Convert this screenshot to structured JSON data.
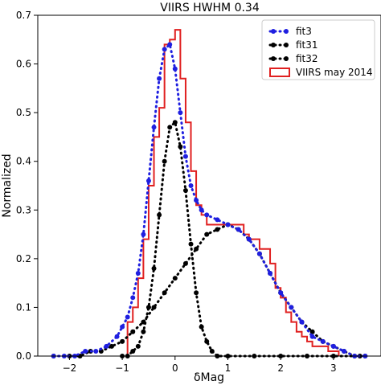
{
  "chart_data": {
    "type": "line",
    "title": "VIIRS HWHM 0.34",
    "xlabel": "δMag",
    "ylabel": "Normalized",
    "xlim": [
      -2.6,
      3.9
    ],
    "ylim": [
      0,
      0.7
    ],
    "xticks": [
      -2,
      -1,
      0,
      1,
      2,
      3
    ],
    "yticks": [
      0.0,
      0.1,
      0.2,
      0.3,
      0.4,
      0.5,
      0.6,
      0.7
    ],
    "grid": false,
    "legend_position": "top-right",
    "series": [
      {
        "name": "fit3",
        "style": "dotted-markers",
        "color": "#1f1fe0",
        "x": [
          -2.3,
          -2.1,
          -1.9,
          -1.7,
          -1.5,
          -1.3,
          -1.1,
          -1.0,
          -0.9,
          -0.8,
          -0.7,
          -0.6,
          -0.5,
          -0.4,
          -0.3,
          -0.2,
          -0.1,
          0.0,
          0.1,
          0.2,
          0.3,
          0.4,
          0.5,
          0.6,
          0.8,
          1.0,
          1.2,
          1.4,
          1.6,
          1.8,
          2.0,
          2.2,
          2.4,
          2.6,
          2.8,
          3.0,
          3.2,
          3.4,
          3.6
        ],
        "y": [
          0.0,
          0.0,
          0.0,
          0.01,
          0.01,
          0.02,
          0.04,
          0.06,
          0.08,
          0.12,
          0.17,
          0.25,
          0.36,
          0.47,
          0.57,
          0.63,
          0.64,
          0.59,
          0.5,
          0.41,
          0.35,
          0.32,
          0.3,
          0.29,
          0.28,
          0.27,
          0.26,
          0.24,
          0.21,
          0.17,
          0.13,
          0.1,
          0.07,
          0.04,
          0.03,
          0.02,
          0.01,
          0.0,
          0.0
        ]
      },
      {
        "name": "fit31",
        "style": "dotted-markers",
        "color": "#000000",
        "x": [
          -1.0,
          -0.9,
          -0.8,
          -0.7,
          -0.6,
          -0.5,
          -0.4,
          -0.3,
          -0.2,
          -0.1,
          0.0,
          0.1,
          0.2,
          0.3,
          0.4,
          0.5,
          0.6,
          0.7,
          0.8,
          1.0,
          1.5,
          2.0,
          2.5,
          3.0,
          3.5
        ],
        "y": [
          0.0,
          0.0,
          0.01,
          0.02,
          0.05,
          0.1,
          0.18,
          0.29,
          0.4,
          0.47,
          0.48,
          0.43,
          0.34,
          0.23,
          0.13,
          0.06,
          0.03,
          0.01,
          0.0,
          0.0,
          0.0,
          0.0,
          0.0,
          0.0,
          0.0
        ]
      },
      {
        "name": "fit32",
        "style": "dotted-markers",
        "color": "#000000",
        "x": [
          -2.3,
          -2.0,
          -1.8,
          -1.6,
          -1.4,
          -1.2,
          -1.0,
          -0.8,
          -0.6,
          -0.4,
          -0.2,
          0.0,
          0.2,
          0.4,
          0.6,
          0.8,
          1.0,
          1.2,
          1.4,
          1.6,
          1.8,
          2.0,
          2.2,
          2.4,
          2.6,
          2.8,
          3.0,
          3.2,
          3.4,
          3.6
        ],
        "y": [
          0.0,
          0.0,
          0.0,
          0.01,
          0.01,
          0.02,
          0.03,
          0.05,
          0.07,
          0.1,
          0.13,
          0.16,
          0.19,
          0.22,
          0.25,
          0.26,
          0.27,
          0.26,
          0.24,
          0.21,
          0.17,
          0.13,
          0.1,
          0.07,
          0.05,
          0.03,
          0.02,
          0.01,
          0.0,
          0.0
        ]
      },
      {
        "name": "VIIRS may 2014",
        "style": "step",
        "color": "#e02020",
        "bin_edges": [
          -0.9,
          -0.8,
          -0.7,
          -0.6,
          -0.5,
          -0.4,
          -0.3,
          -0.2,
          -0.1,
          0.0,
          0.1,
          0.2,
          0.3,
          0.4,
          0.5,
          0.6,
          0.7,
          0.8,
          0.9,
          1.0,
          1.1,
          1.2,
          1.3,
          1.4,
          1.5,
          1.6,
          1.7,
          1.8,
          1.9,
          2.0,
          2.1,
          2.2,
          2.3,
          2.4,
          2.5,
          2.6,
          2.7,
          2.8,
          2.9,
          3.0,
          3.1
        ],
        "values": [
          0.07,
          0.1,
          0.16,
          0.24,
          0.35,
          0.45,
          0.51,
          0.64,
          0.65,
          0.67,
          0.57,
          0.48,
          0.38,
          0.31,
          0.29,
          0.27,
          0.27,
          0.27,
          0.27,
          0.27,
          0.27,
          0.27,
          0.25,
          0.24,
          0.24,
          0.22,
          0.22,
          0.19,
          0.14,
          0.12,
          0.09,
          0.07,
          0.05,
          0.04,
          0.03,
          0.02,
          0.02,
          0.02,
          0.01,
          0.01
        ]
      }
    ]
  }
}
